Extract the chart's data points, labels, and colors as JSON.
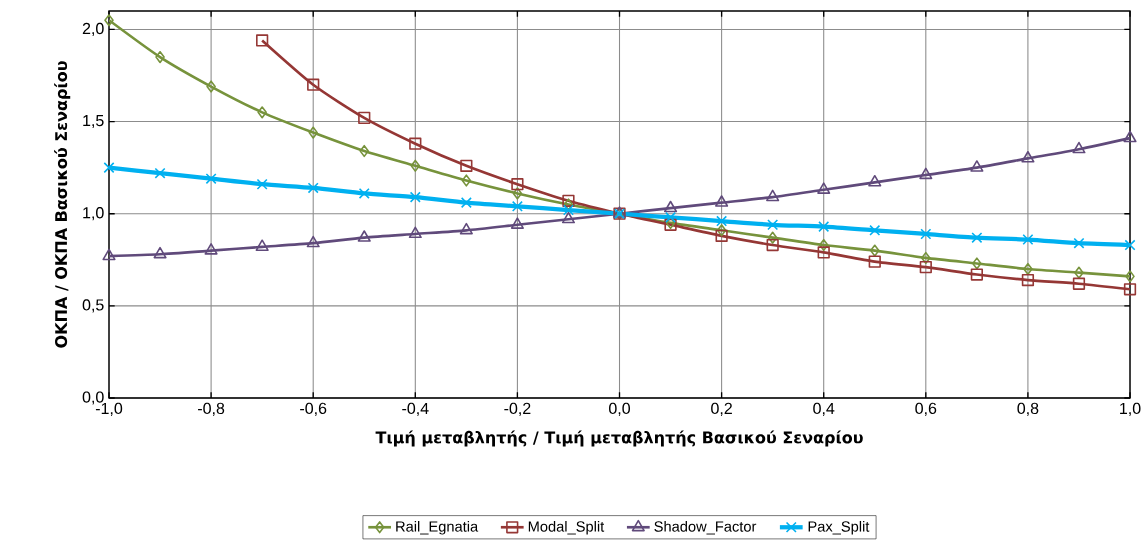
{
  "chart_data": {
    "type": "line",
    "xlabel": "Τιμή μεταβλητής / Τιμή μεταβλητής Βασικού Σεναρίου",
    "ylabel": "ΟΚΠΑ / ΟΚΠΑ Βασικού Σεναρίου",
    "x": [
      -1.0,
      -0.9,
      -0.8,
      -0.7,
      -0.6,
      -0.5,
      -0.4,
      -0.3,
      -0.2,
      -0.1,
      0.0,
      0.1,
      0.2,
      0.3,
      0.4,
      0.5,
      0.6,
      0.7,
      0.8,
      0.9,
      1.0
    ],
    "series": [
      {
        "name": "Rail_Egnatia",
        "color": "#77933c",
        "marker": "diamond",
        "values": [
          2.05,
          1.85,
          1.69,
          1.55,
          1.44,
          1.34,
          1.26,
          1.18,
          1.11,
          1.05,
          1.0,
          0.95,
          0.91,
          0.87,
          0.83,
          0.8,
          0.76,
          0.73,
          0.7,
          0.68,
          0.66
        ]
      },
      {
        "name": "Modal_Split",
        "color": "#953735",
        "marker": "square",
        "values": [
          null,
          null,
          null,
          1.94,
          1.7,
          1.52,
          1.38,
          1.26,
          1.16,
          1.07,
          1.0,
          0.94,
          0.88,
          0.83,
          0.79,
          0.74,
          0.71,
          0.67,
          0.64,
          0.62,
          0.59
        ]
      },
      {
        "name": "Shadow_Factor",
        "color": "#604a7b",
        "marker": "triangle",
        "values": [
          0.77,
          0.78,
          0.8,
          0.82,
          0.84,
          0.87,
          0.89,
          0.91,
          0.94,
          0.97,
          1.0,
          1.03,
          1.06,
          1.09,
          1.13,
          1.17,
          1.21,
          1.25,
          1.3,
          1.35,
          1.41
        ]
      },
      {
        "name": "Pax_Split",
        "color": "#00b0f0",
        "marker": "cross",
        "values": [
          1.25,
          1.22,
          1.19,
          1.16,
          1.14,
          1.11,
          1.09,
          1.06,
          1.04,
          1.02,
          1.0,
          0.98,
          0.96,
          0.94,
          0.93,
          0.91,
          0.89,
          0.87,
          0.86,
          0.84,
          0.83
        ]
      }
    ],
    "xlim": [
      -1.0,
      1.0
    ],
    "ylim": [
      0,
      2.1
    ],
    "xticks": [
      {
        "value": -1.0,
        "label": "-1,0"
      },
      {
        "value": -0.8,
        "label": "-0,8"
      },
      {
        "value": -0.6,
        "label": "-0,6"
      },
      {
        "value": -0.4,
        "label": "-0,4"
      },
      {
        "value": -0.2,
        "label": "-0,2"
      },
      {
        "value": 0.0,
        "label": "0,0"
      },
      {
        "value": 0.2,
        "label": "0,2"
      },
      {
        "value": 0.4,
        "label": "0,4"
      },
      {
        "value": 0.6,
        "label": "0,6"
      },
      {
        "value": 0.8,
        "label": "0,8"
      },
      {
        "value": 1.0,
        "label": "1,0"
      }
    ],
    "yticks": [
      {
        "value": 0,
        "label": "0,0"
      },
      {
        "value": 0.5,
        "label": "0,5"
      },
      {
        "value": 1.0,
        "label": "1,0"
      },
      {
        "value": 1.5,
        "label": "1,5"
      },
      {
        "value": 2.0,
        "label": "2,0"
      }
    ],
    "grid": true,
    "legend": "bottom",
    "line_style": "solid"
  }
}
